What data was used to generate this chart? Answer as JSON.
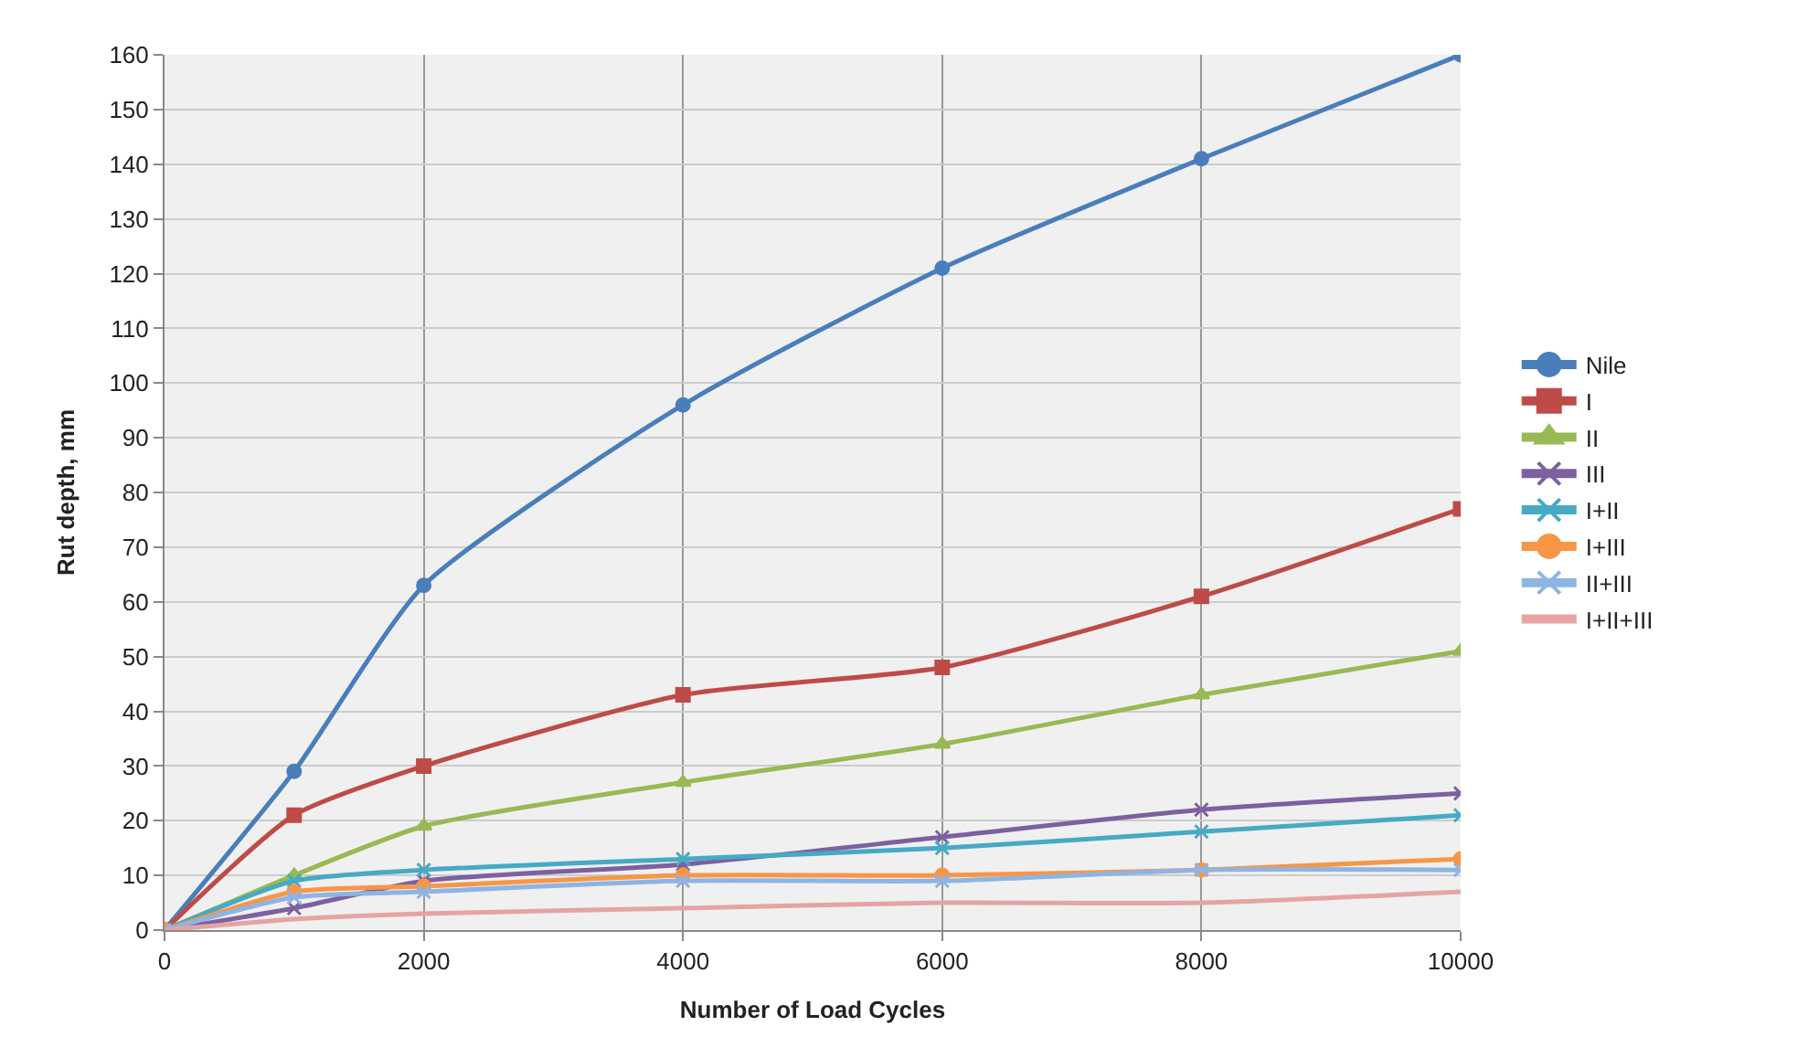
{
  "chart_data": {
    "type": "line",
    "xlabel": "Number of Load Cycles",
    "ylabel": "Rut depth, mm",
    "x": [
      0,
      1000,
      2000,
      4000,
      6000,
      8000,
      10000
    ],
    "series": [
      {
        "name": "Nile",
        "color": "#4a7ebb",
        "marker": "circle",
        "values": [
          0,
          29,
          63,
          96,
          121,
          141,
          160
        ]
      },
      {
        "name": "I",
        "color": "#be4b48",
        "marker": "square",
        "values": [
          0,
          21,
          30,
          43,
          48,
          61,
          77
        ]
      },
      {
        "name": "II",
        "color": "#98b954",
        "marker": "triangle",
        "values": [
          0,
          10,
          19,
          27,
          34,
          43,
          51
        ]
      },
      {
        "name": "III",
        "color": "#7d60a0",
        "marker": "cross",
        "values": [
          0,
          4,
          9,
          12,
          17,
          22,
          25
        ]
      },
      {
        "name": "I+II",
        "color": "#46aac5",
        "marker": "cross",
        "values": [
          0,
          9,
          11,
          13,
          15,
          18,
          21
        ]
      },
      {
        "name": "I+III",
        "color": "#f79646",
        "marker": "circle",
        "values": [
          0,
          7,
          8,
          10,
          10,
          11,
          13
        ]
      },
      {
        "name": "II+III",
        "color": "#8eb4e3",
        "marker": "cross",
        "values": [
          0,
          6,
          7,
          9,
          9,
          11,
          11
        ]
      },
      {
        "name": "I+II+III",
        "color": "#e6a3a3",
        "marker": "none",
        "values": [
          0,
          2,
          3,
          4,
          5,
          5,
          7
        ]
      }
    ],
    "xlim": [
      0,
      10000
    ],
    "xticks": [
      0,
      2000,
      4000,
      6000,
      8000,
      10000
    ],
    "ylim": [
      0,
      160
    ],
    "yticks": [
      0,
      10,
      20,
      30,
      40,
      50,
      60,
      70,
      80,
      90,
      100,
      110,
      120,
      130,
      140,
      150,
      160
    ],
    "grid": true,
    "legend": "right"
  }
}
